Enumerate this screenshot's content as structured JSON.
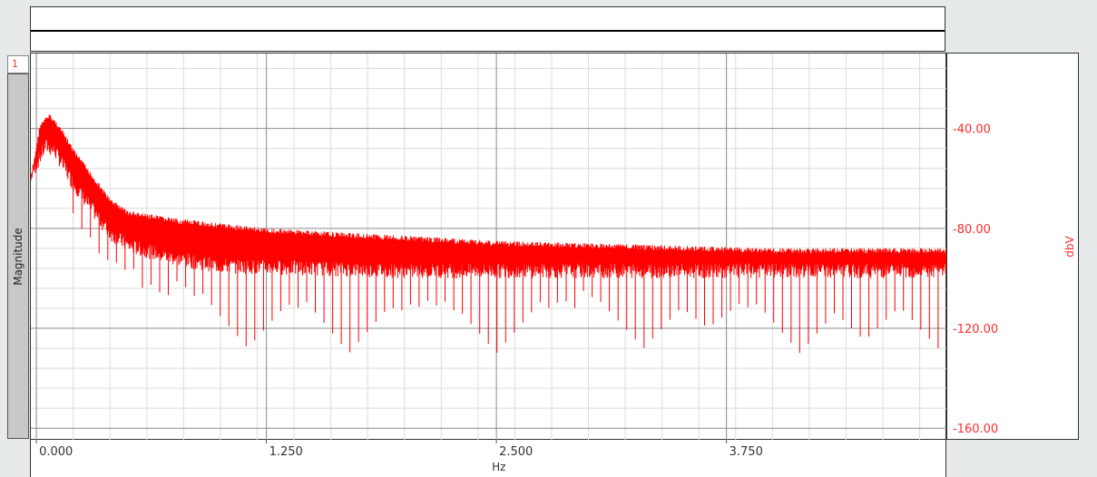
{
  "channel": {
    "id": "1"
  },
  "chart_data": {
    "type": "line",
    "xlabel": "Hz",
    "ylabel_left": "Magnitude",
    "ylabel_right": "dbV",
    "xlim": [
      -0.03,
      4.95
    ],
    "ylim": [
      -165,
      -10
    ],
    "xticks": [
      0.0,
      1.25,
      2.5,
      3.75
    ],
    "xtick_labels": [
      "0.000",
      "1.250",
      "2.500",
      "3.750"
    ],
    "yticks": [
      -40,
      -80,
      -120,
      -160
    ],
    "ytick_labels": [
      "-40.00",
      "-80.00",
      "-120.00",
      "-160.00"
    ],
    "grid": true,
    "series": [
      {
        "color": "#ff0000",
        "description_points": {
          "upper_envelope": [
            [
              -0.03,
              -60
            ],
            [
              0.02,
              -38
            ],
            [
              0.07,
              -34
            ],
            [
              0.12,
              -38
            ],
            [
              0.2,
              -48
            ],
            [
              0.3,
              -58
            ],
            [
              0.4,
              -68
            ],
            [
              0.5,
              -73
            ],
            [
              0.75,
              -76
            ],
            [
              1.0,
              -78
            ],
            [
              1.25,
              -80
            ],
            [
              1.5,
              -81
            ],
            [
              2.0,
              -83
            ],
            [
              2.5,
              -85
            ],
            [
              3.0,
              -86
            ],
            [
              3.5,
              -87
            ],
            [
              4.0,
              -88
            ],
            [
              4.5,
              -88
            ],
            [
              4.95,
              -88
            ]
          ],
          "lower_envelope": [
            [
              -0.03,
              -62
            ],
            [
              0.05,
              -50
            ],
            [
              0.1,
              -52
            ],
            [
              0.2,
              -65
            ],
            [
              0.3,
              -75
            ],
            [
              0.4,
              -85
            ],
            [
              0.5,
              -90
            ],
            [
              0.75,
              -95
            ],
            [
              1.0,
              -98
            ],
            [
              1.5,
              -99
            ],
            [
              2.0,
              -100
            ],
            [
              2.5,
              -100
            ],
            [
              3.0,
              -100
            ],
            [
              3.5,
              -100
            ],
            [
              4.0,
              -100
            ],
            [
              4.5,
              -100
            ],
            [
              4.95,
              -100
            ]
          ],
          "notch_minima": [
            [
              1.15,
              -128
            ],
            [
              1.7,
              -130
            ],
            [
              2.5,
              -130
            ],
            [
              3.3,
              -128
            ],
            [
              3.65,
              -120
            ],
            [
              4.15,
              -130
            ],
            [
              4.5,
              -125
            ],
            [
              4.9,
              -128
            ]
          ]
        }
      }
    ]
  }
}
